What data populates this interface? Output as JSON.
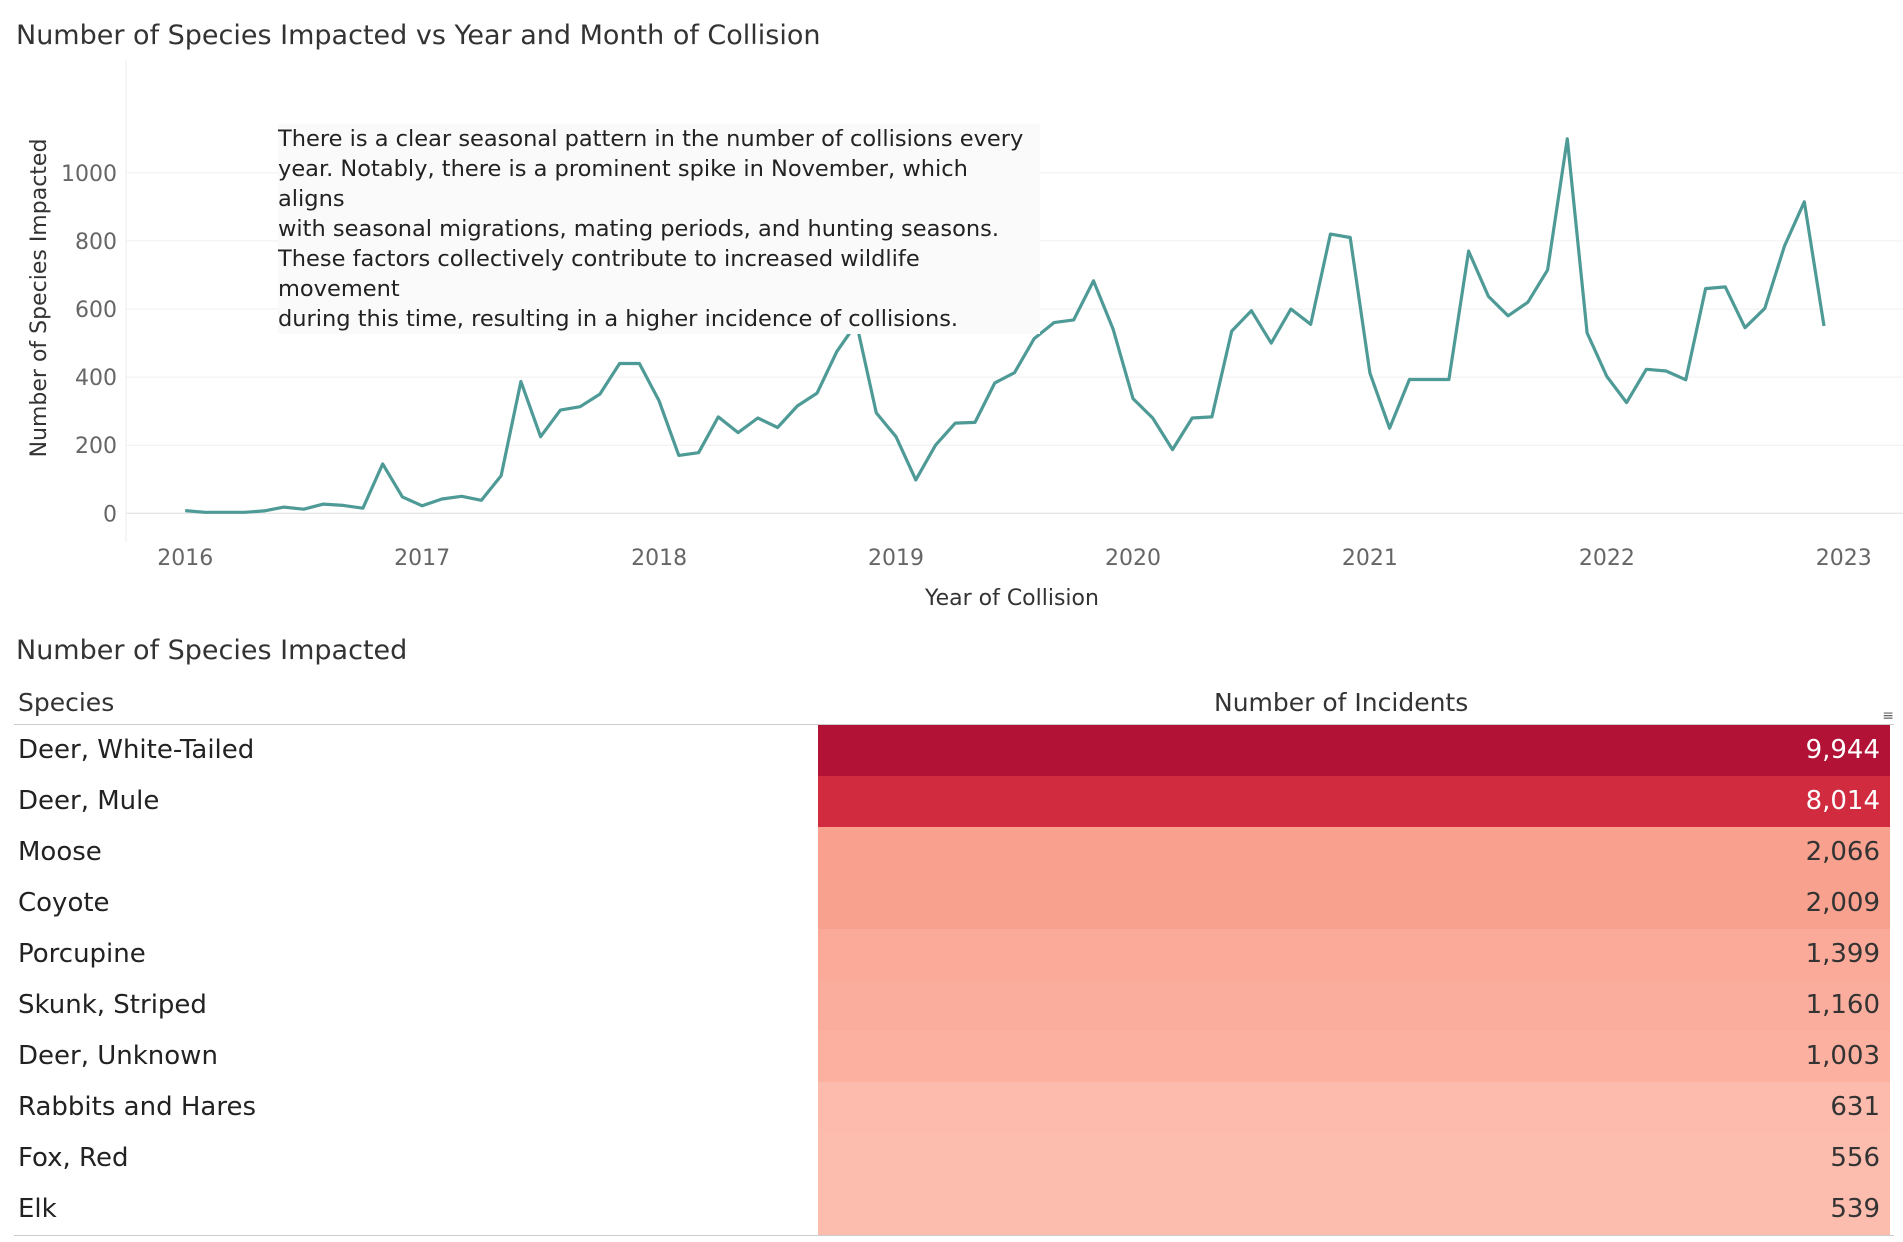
{
  "chart_title": "Number of Species Impacted vs Year and Month of Collision",
  "annotation": "There is a clear seasonal pattern in the number of collisions every\nyear. Notably, there is a prominent spike in November, which aligns\nwith seasonal migrations, mating periods, and hunting seasons.\nThese factors collectively contribute to increased wildlife movement\nduring this time, resulting in a higher incidence of collisions.",
  "chart_data": {
    "type": "line",
    "xlabel": "Year of Collision",
    "ylabel": "Number of Species Impacted",
    "x_ticks": [
      "2016",
      "2017",
      "2018",
      "2019",
      "2020",
      "2021",
      "2022",
      "2023"
    ],
    "y_ticks": [
      0,
      200,
      400,
      600,
      800,
      1000
    ],
    "xlim": [
      "2015-10",
      "2023-04"
    ],
    "ylim": [
      -55,
      1120
    ],
    "line_color": "#4e9a96",
    "grid": true,
    "series": [
      {
        "x": [
          "2016-01",
          "2016-02",
          "2016-03",
          "2016-04",
          "2016-05",
          "2016-06",
          "2016-07",
          "2016-08",
          "2016-09",
          "2016-10",
          "2016-11",
          "2016-12",
          "2017-01",
          "2017-02",
          "2017-03",
          "2017-04",
          "2017-05",
          "2017-06",
          "2017-07",
          "2017-08",
          "2017-09",
          "2017-10",
          "2017-11",
          "2017-12",
          "2018-01",
          "2018-02",
          "2018-03",
          "2018-04",
          "2018-05",
          "2018-06",
          "2018-07",
          "2018-08",
          "2018-09",
          "2018-10",
          "2018-11",
          "2018-12",
          "2019-01",
          "2019-02",
          "2019-03",
          "2019-04",
          "2019-05",
          "2019-06",
          "2019-07",
          "2019-08",
          "2019-09",
          "2019-10",
          "2019-11",
          "2019-12",
          "2020-01",
          "2020-02",
          "2020-03",
          "2020-04",
          "2020-05",
          "2020-06",
          "2020-07",
          "2020-08",
          "2020-09",
          "2020-10",
          "2020-11",
          "2020-12",
          "2021-01",
          "2021-02",
          "2021-03",
          "2021-04",
          "2021-05",
          "2021-06",
          "2021-07",
          "2021-08",
          "2021-09",
          "2021-10",
          "2021-11",
          "2021-12",
          "2022-01",
          "2022-02",
          "2022-03",
          "2022-04",
          "2022-05",
          "2022-06",
          "2022-07",
          "2022-08",
          "2022-09",
          "2022-10",
          "2022-11",
          "2022-12"
        ],
        "values": [
          8,
          3,
          3,
          3,
          7,
          18,
          12,
          27,
          23,
          15,
          145,
          48,
          22,
          42,
          50,
          38,
          110,
          387,
          225,
          303,
          313,
          350,
          440,
          440,
          330,
          170,
          178,
          283,
          237,
          280,
          252,
          315,
          353,
          475,
          558,
          295,
          225,
          98,
          200,
          265,
          267,
          383,
          413,
          513,
          560,
          568,
          683,
          540,
          337,
          280,
          187,
          280,
          283,
          535,
          595,
          500,
          600,
          555,
          820,
          810,
          412,
          250,
          393,
          393,
          393,
          770,
          637,
          580,
          620,
          715,
          1100,
          530,
          402,
          325,
          423,
          418,
          392,
          660,
          665,
          545,
          602,
          785,
          915,
          550
        ]
      }
    ]
  },
  "table_title": "Number of Species Impacted",
  "table": {
    "col_species": "Species",
    "col_count": "Number of Incidents",
    "rows": [
      {
        "species": "Deer, White-Tailed",
        "count": "9,944",
        "value": 9944,
        "color": "#b11235",
        "text_color": "#ffffff"
      },
      {
        "species": "Deer, Mule",
        "count": "8,014",
        "value": 8014,
        "color": "#d12b3f",
        "text_color": "#ffffff"
      },
      {
        "species": "Moose",
        "count": "2,066",
        "value": 2066,
        "color": "#f9a08e",
        "text_color": "#333333"
      },
      {
        "species": "Coyote",
        "count": "2,009",
        "value": 2009,
        "color": "#f9a18f",
        "text_color": "#333333"
      },
      {
        "species": "Porcupine",
        "count": "1,399",
        "value": 1399,
        "color": "#fbaa99",
        "text_color": "#333333"
      },
      {
        "species": "Skunk, Striped",
        "count": "1,160",
        "value": 1160,
        "color": "#fbad9d",
        "text_color": "#333333"
      },
      {
        "species": "Deer, Unknown",
        "count": "1,003",
        "value": 1003,
        "color": "#fcb0a0",
        "text_color": "#333333"
      },
      {
        "species": "Rabbits and Hares",
        "count": "631",
        "value": 631,
        "color": "#fcbbad",
        "text_color": "#333333"
      },
      {
        "species": "Fox, Red",
        "count": "556",
        "value": 556,
        "color": "#fcbcae",
        "text_color": "#333333"
      },
      {
        "species": "Elk",
        "count": "539",
        "value": 539,
        "color": "#fcbdaf",
        "text_color": "#333333"
      }
    ]
  }
}
